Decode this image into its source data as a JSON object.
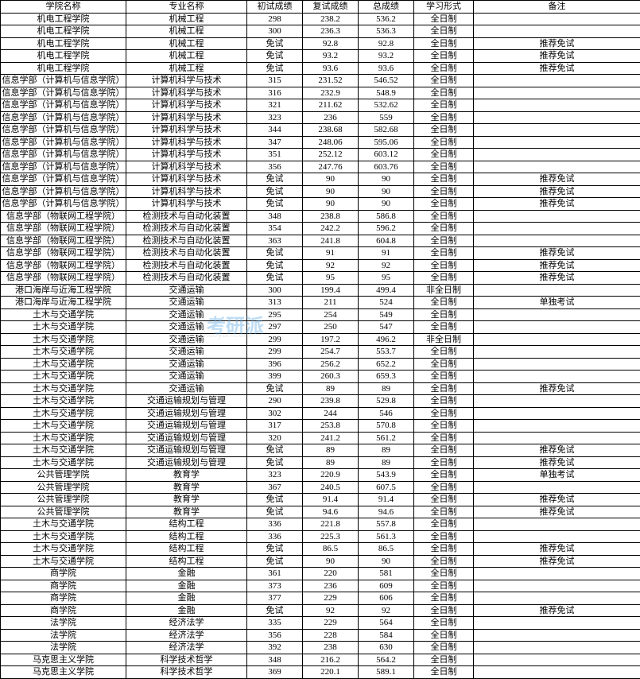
{
  "columns": [
    "学院名称",
    "专业名称",
    "初试成绩",
    "复试成绩",
    "总成绩",
    "学习形式",
    "备注"
  ],
  "rows": [
    [
      "机电工程学院",
      "机械工程",
      "298",
      "238.2",
      "536.2",
      "全日制",
      ""
    ],
    [
      "机电工程学院",
      "机械工程",
      "300",
      "236.3",
      "536.3",
      "全日制",
      ""
    ],
    [
      "机电工程学院",
      "机械工程",
      "免试",
      "92.8",
      "92.8",
      "全日制",
      "推荐免试"
    ],
    [
      "机电工程学院",
      "机械工程",
      "免试",
      "93.2",
      "93.2",
      "全日制",
      "推荐免试"
    ],
    [
      "机电工程学院",
      "机械工程",
      "免试",
      "93.6",
      "93.6",
      "全日制",
      "推荐免试"
    ],
    [
      "信息学部（计算机与信息学院）",
      "计算机科学与技术",
      "315",
      "231.52",
      "546.52",
      "全日制",
      ""
    ],
    [
      "信息学部（计算机与信息学院）",
      "计算机科学与技术",
      "316",
      "232.9",
      "548.9",
      "全日制",
      ""
    ],
    [
      "信息学部（计算机与信息学院）",
      "计算机科学与技术",
      "321",
      "211.62",
      "532.62",
      "全日制",
      ""
    ],
    [
      "信息学部（计算机与信息学院）",
      "计算机科学与技术",
      "323",
      "236",
      "559",
      "全日制",
      ""
    ],
    [
      "信息学部（计算机与信息学院）",
      "计算机科学与技术",
      "344",
      "238.68",
      "582.68",
      "全日制",
      ""
    ],
    [
      "信息学部（计算机与信息学院）",
      "计算机科学与技术",
      "347",
      "248.06",
      "595.06",
      "全日制",
      ""
    ],
    [
      "信息学部（计算机与信息学院）",
      "计算机科学与技术",
      "351",
      "252.12",
      "603.12",
      "全日制",
      ""
    ],
    [
      "信息学部（计算机与信息学院）",
      "计算机科学与技术",
      "356",
      "247.76",
      "603.76",
      "全日制",
      ""
    ],
    [
      "信息学部（计算机与信息学院）",
      "计算机科学与技术",
      "免试",
      "90",
      "90",
      "全日制",
      "推荐免试"
    ],
    [
      "信息学部（计算机与信息学院）",
      "计算机科学与技术",
      "免试",
      "90",
      "90",
      "全日制",
      "推荐免试"
    ],
    [
      "信息学部（计算机与信息学院）",
      "计算机科学与技术",
      "免试",
      "90",
      "90",
      "全日制",
      "推荐免试"
    ],
    [
      "信息学部（物联网工程学院）",
      "检测技术与自动化装置",
      "348",
      "238.8",
      "586.8",
      "全日制",
      ""
    ],
    [
      "信息学部（物联网工程学院）",
      "检测技术与自动化装置",
      "354",
      "242.2",
      "596.2",
      "全日制",
      ""
    ],
    [
      "信息学部（物联网工程学院）",
      "检测技术与自动化装置",
      "363",
      "241.8",
      "604.8",
      "全日制",
      ""
    ],
    [
      "信息学部（物联网工程学院）",
      "检测技术与自动化装置",
      "免试",
      "91",
      "91",
      "全日制",
      "推荐免试"
    ],
    [
      "信息学部（物联网工程学院）",
      "检测技术与自动化装置",
      "免试",
      "92",
      "92",
      "全日制",
      "推荐免试"
    ],
    [
      "信息学部（物联网工程学院）",
      "检测技术与自动化装置",
      "免试",
      "95",
      "95",
      "全日制",
      "推荐免试"
    ],
    [
      "港口海岸与近海工程学院",
      "交通运输",
      "300",
      "199.4",
      "499.4",
      "非全日制",
      ""
    ],
    [
      "港口海岸与近海工程学院",
      "交通运输",
      "313",
      "211",
      "524",
      "全日制",
      "单独考试"
    ],
    [
      "土木与交通学院",
      "交通运输",
      "295",
      "254",
      "549",
      "全日制",
      ""
    ],
    [
      "土木与交通学院",
      "交通运输",
      "297",
      "250",
      "547",
      "全日制",
      ""
    ],
    [
      "土木与交通学院",
      "交通运输",
      "299",
      "197.2",
      "496.2",
      "非全日制",
      ""
    ],
    [
      "土木与交通学院",
      "交通运输",
      "299",
      "254.7",
      "553.7",
      "全日制",
      ""
    ],
    [
      "土木与交通学院",
      "交通运输",
      "396",
      "256.2",
      "652.2",
      "全日制",
      ""
    ],
    [
      "土木与交通学院",
      "交通运输",
      "399",
      "260.3",
      "659.3",
      "全日制",
      ""
    ],
    [
      "土木与交通学院",
      "交通运输",
      "免试",
      "89",
      "89",
      "全日制",
      "推荐免试"
    ],
    [
      "土木与交通学院",
      "交通运输规划与管理",
      "290",
      "239.8",
      "529.8",
      "全日制",
      ""
    ],
    [
      "土木与交通学院",
      "交通运输规划与管理",
      "302",
      "244",
      "546",
      "全日制",
      ""
    ],
    [
      "土木与交通学院",
      "交通运输规划与管理",
      "317",
      "253.8",
      "570.8",
      "全日制",
      ""
    ],
    [
      "土木与交通学院",
      "交通运输规划与管理",
      "320",
      "241.2",
      "561.2",
      "全日制",
      ""
    ],
    [
      "土木与交通学院",
      "交通运输规划与管理",
      "免试",
      "89",
      "89",
      "全日制",
      "推荐免试"
    ],
    [
      "土木与交通学院",
      "交通运输规划与管理",
      "免试",
      "89",
      "89",
      "全日制",
      "推荐免试"
    ],
    [
      "公共管理学院",
      "教育学",
      "323",
      "220.9",
      "543.9",
      "全日制",
      "单独考试"
    ],
    [
      "公共管理学院",
      "教育学",
      "367",
      "240.5",
      "607.5",
      "全日制",
      ""
    ],
    [
      "公共管理学院",
      "教育学",
      "免试",
      "91.4",
      "91.4",
      "全日制",
      "推荐免试"
    ],
    [
      "公共管理学院",
      "教育学",
      "免试",
      "94.6",
      "94.6",
      "全日制",
      "推荐免试"
    ],
    [
      "土木与交通学院",
      "结构工程",
      "336",
      "221.8",
      "557.8",
      "全日制",
      ""
    ],
    [
      "土木与交通学院",
      "结构工程",
      "336",
      "225.3",
      "561.3",
      "全日制",
      ""
    ],
    [
      "土木与交通学院",
      "结构工程",
      "免试",
      "86.5",
      "86.5",
      "全日制",
      "推荐免试"
    ],
    [
      "土木与交通学院",
      "结构工程",
      "免试",
      "90",
      "90",
      "全日制",
      "推荐免试"
    ],
    [
      "商学院",
      "金融",
      "361",
      "220",
      "581",
      "全日制",
      ""
    ],
    [
      "商学院",
      "金融",
      "373",
      "236",
      "609",
      "全日制",
      ""
    ],
    [
      "商学院",
      "金融",
      "377",
      "229",
      "606",
      "全日制",
      ""
    ],
    [
      "商学院",
      "金融",
      "免试",
      "92",
      "92",
      "全日制",
      "推荐免试"
    ],
    [
      "法学院",
      "经济法学",
      "335",
      "229",
      "564",
      "全日制",
      ""
    ],
    [
      "法学院",
      "经济法学",
      "356",
      "228",
      "584",
      "全日制",
      ""
    ],
    [
      "法学院",
      "经济法学",
      "392",
      "238",
      "630",
      "全日制",
      ""
    ],
    [
      "马克思主义学院",
      "科学技术哲学",
      "348",
      "216.2",
      "564.2",
      "全日制",
      ""
    ],
    [
      "马克思主义学院",
      "科学技术哲学",
      "369",
      "220.1",
      "589.1",
      "全日制",
      ""
    ]
  ],
  "watermark": "考研派",
  "watermark_sub": "okaoyan.com"
}
